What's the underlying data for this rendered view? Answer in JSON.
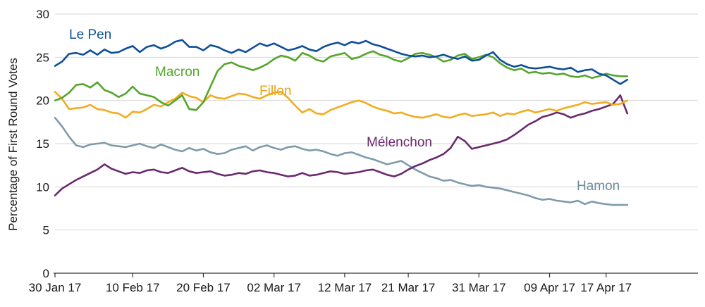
{
  "chart_data": {
    "type": "line",
    "title": "",
    "xlabel": "",
    "ylabel": "Percentage of First Round Votes",
    "ylim": [
      0,
      30
    ],
    "yticks": [
      0,
      5,
      10,
      15,
      20,
      25,
      30
    ],
    "x_start": "30 Jan 17",
    "x_end_days": 91,
    "xtick_labels": [
      "30 Jan 17",
      "10 Feb 17",
      "20 Feb 17",
      "02 Mar 17",
      "12 Mar 17",
      "21 Mar 17",
      "31 Mar 17",
      "09 Apr 17",
      "17 Apr 17"
    ],
    "xtick_days": [
      0,
      11,
      21,
      31,
      41,
      50,
      60,
      70,
      78
    ],
    "grid": true,
    "series": [
      {
        "name": "Le Pen",
        "color": "#0e4f99",
        "x": [
          0,
          1,
          2,
          3,
          4,
          5,
          6,
          7,
          8,
          9,
          10,
          11,
          12,
          13,
          14,
          15,
          16,
          17,
          18,
          19,
          20,
          21,
          22,
          23,
          24,
          25,
          26,
          27,
          28,
          29,
          30,
          31,
          32,
          33,
          34,
          35,
          36,
          37,
          38,
          39,
          40,
          41,
          42,
          43,
          44,
          45,
          46,
          47,
          48,
          49,
          50,
          51,
          52,
          53,
          54,
          55,
          56,
          57,
          58,
          59,
          60,
          61,
          62,
          63,
          64,
          65,
          66,
          67,
          68,
          69,
          70,
          71,
          72,
          73,
          74,
          75,
          76,
          77,
          78,
          79,
          80,
          81
        ],
        "y": [
          24.0,
          24.5,
          25.4,
          25.5,
          25.3,
          25.8,
          25.3,
          25.9,
          25.5,
          25.6,
          26.0,
          26.3,
          25.6,
          26.2,
          26.4,
          26.0,
          26.3,
          26.8,
          27.0,
          26.2,
          26.2,
          25.8,
          26.4,
          26.2,
          25.8,
          25.5,
          25.9,
          25.6,
          26.1,
          26.6,
          26.3,
          26.6,
          26.2,
          25.8,
          26.0,
          26.3,
          25.9,
          25.7,
          26.2,
          26.5,
          26.7,
          26.4,
          26.8,
          26.6,
          26.9,
          26.5,
          26.3,
          26.0,
          25.7,
          25.4,
          25.2,
          25.1,
          25.2,
          25.0,
          25.1,
          25.3,
          25.0,
          24.8,
          25.1,
          24.6,
          24.7,
          25.2,
          25.6,
          24.7,
          24.2,
          23.9,
          24.1,
          23.8,
          23.7,
          23.8,
          23.9,
          23.7,
          23.6,
          23.8,
          23.3,
          23.5,
          23.6,
          23.1,
          22.9,
          22.4,
          21.9,
          22.4
        ]
      },
      {
        "name": "Macron",
        "color": "#55a52d",
        "x": [
          0,
          1,
          2,
          3,
          4,
          5,
          6,
          7,
          8,
          9,
          10,
          11,
          12,
          13,
          14,
          15,
          16,
          17,
          18,
          19,
          20,
          21,
          22,
          23,
          24,
          25,
          26,
          27,
          28,
          29,
          30,
          31,
          32,
          33,
          34,
          35,
          36,
          37,
          38,
          39,
          40,
          41,
          42,
          43,
          44,
          45,
          46,
          47,
          48,
          49,
          50,
          51,
          52,
          53,
          54,
          55,
          56,
          57,
          58,
          59,
          60,
          61,
          62,
          63,
          64,
          65,
          66,
          67,
          68,
          69,
          70,
          71,
          72,
          73,
          74,
          75,
          76,
          77,
          78,
          79,
          80,
          81
        ],
        "y": [
          20.0,
          20.3,
          20.9,
          21.8,
          21.9,
          21.5,
          22.1,
          21.2,
          20.9,
          20.4,
          20.8,
          21.6,
          20.8,
          20.6,
          20.4,
          19.8,
          19.4,
          20.0,
          20.6,
          19.0,
          18.9,
          19.8,
          21.6,
          23.4,
          24.2,
          24.4,
          24.0,
          23.8,
          23.5,
          23.8,
          24.2,
          24.8,
          25.2,
          25.0,
          24.6,
          25.5,
          25.2,
          24.7,
          24.5,
          25.1,
          25.3,
          25.5,
          24.8,
          25.0,
          25.4,
          25.7,
          25.3,
          25.1,
          24.7,
          24.5,
          24.9,
          25.4,
          25.5,
          25.3,
          25.0,
          24.5,
          24.7,
          25.2,
          25.4,
          24.8,
          25.0,
          25.3,
          25.0,
          24.3,
          23.8,
          23.5,
          23.7,
          23.2,
          23.3,
          23.1,
          23.2,
          23.0,
          23.1,
          22.8,
          22.7,
          22.9,
          22.6,
          22.8,
          23.1,
          22.9,
          22.8,
          22.8
        ]
      },
      {
        "name": "Fillon",
        "color": "#f2ac1f",
        "x": [
          0,
          1,
          2,
          3,
          4,
          5,
          6,
          7,
          8,
          9,
          10,
          11,
          12,
          13,
          14,
          15,
          16,
          17,
          18,
          19,
          20,
          21,
          22,
          23,
          24,
          25,
          26,
          27,
          28,
          29,
          30,
          31,
          32,
          33,
          34,
          35,
          36,
          37,
          38,
          39,
          40,
          41,
          42,
          43,
          44,
          45,
          46,
          47,
          48,
          49,
          50,
          51,
          52,
          53,
          54,
          55,
          56,
          57,
          58,
          59,
          60,
          61,
          62,
          63,
          64,
          65,
          66,
          67,
          68,
          69,
          70,
          71,
          72,
          73,
          74,
          75,
          76,
          77,
          78,
          79,
          80,
          81
        ],
        "y": [
          21.0,
          20.2,
          19.0,
          19.1,
          19.2,
          19.5,
          19.0,
          18.9,
          18.6,
          18.5,
          18.0,
          18.7,
          18.6,
          19.0,
          19.5,
          19.3,
          19.8,
          20.2,
          20.9,
          20.5,
          20.3,
          19.8,
          20.6,
          20.3,
          20.2,
          20.5,
          20.8,
          20.7,
          20.4,
          20.2,
          20.6,
          20.9,
          21.0,
          20.3,
          19.4,
          18.6,
          19.0,
          18.5,
          18.4,
          18.9,
          19.2,
          19.5,
          19.8,
          20.0,
          19.7,
          19.3,
          19.0,
          18.8,
          18.5,
          18.6,
          18.3,
          18.1,
          18.0,
          18.2,
          18.4,
          18.1,
          18.0,
          18.3,
          18.5,
          18.2,
          18.3,
          18.4,
          18.6,
          18.2,
          18.5,
          18.4,
          18.7,
          18.9,
          18.6,
          18.8,
          19.0,
          18.8,
          19.1,
          19.3,
          19.5,
          19.8,
          19.6,
          19.7,
          19.8,
          19.5,
          19.6,
          20.0
        ]
      },
      {
        "name": "Mélenchon",
        "color": "#6a2a6e",
        "x": [
          0,
          1,
          2,
          3,
          4,
          5,
          6,
          7,
          8,
          9,
          10,
          11,
          12,
          13,
          14,
          15,
          16,
          17,
          18,
          19,
          20,
          21,
          22,
          23,
          24,
          25,
          26,
          27,
          28,
          29,
          30,
          31,
          32,
          33,
          34,
          35,
          36,
          37,
          38,
          39,
          40,
          41,
          42,
          43,
          44,
          45,
          46,
          47,
          48,
          49,
          50,
          51,
          52,
          53,
          54,
          55,
          56,
          57,
          58,
          59,
          60,
          61,
          62,
          63,
          64,
          65,
          66,
          67,
          68,
          69,
          70,
          71,
          72,
          73,
          74,
          75,
          76,
          77,
          78,
          79,
          80,
          81
        ],
        "y": [
          9.0,
          9.8,
          10.3,
          10.8,
          11.2,
          11.6,
          12.0,
          12.6,
          12.1,
          11.8,
          11.5,
          11.7,
          11.6,
          11.9,
          12.0,
          11.7,
          11.6,
          11.9,
          12.2,
          11.8,
          11.6,
          11.7,
          11.8,
          11.5,
          11.3,
          11.4,
          11.6,
          11.5,
          11.8,
          11.9,
          11.7,
          11.6,
          11.4,
          11.2,
          11.3,
          11.6,
          11.3,
          11.4,
          11.6,
          11.8,
          11.7,
          11.5,
          11.6,
          11.7,
          11.9,
          12.0,
          11.7,
          11.4,
          11.2,
          11.5,
          12.0,
          12.4,
          12.7,
          13.1,
          13.4,
          13.8,
          14.5,
          15.8,
          15.3,
          14.4,
          14.6,
          14.8,
          15.0,
          15.2,
          15.5,
          16.0,
          16.6,
          17.2,
          17.6,
          18.1,
          18.3,
          18.6,
          18.4,
          18.0,
          18.3,
          18.5,
          18.8,
          19.0,
          19.3,
          19.6,
          20.6,
          18.5
        ]
      },
      {
        "name": "Hamon",
        "color": "#7f9bab",
        "x": [
          0,
          1,
          2,
          3,
          4,
          5,
          6,
          7,
          8,
          9,
          10,
          11,
          12,
          13,
          14,
          15,
          16,
          17,
          18,
          19,
          20,
          21,
          22,
          23,
          24,
          25,
          26,
          27,
          28,
          29,
          30,
          31,
          32,
          33,
          34,
          35,
          36,
          37,
          38,
          39,
          40,
          41,
          42,
          43,
          44,
          45,
          46,
          47,
          48,
          49,
          50,
          51,
          52,
          53,
          54,
          55,
          56,
          57,
          58,
          59,
          60,
          61,
          62,
          63,
          64,
          65,
          66,
          67,
          68,
          69,
          70,
          71,
          72,
          73,
          74,
          75,
          76,
          77,
          78,
          79,
          80,
          81
        ],
        "y": [
          18.0,
          17.0,
          15.8,
          14.8,
          14.6,
          14.9,
          15.0,
          15.1,
          14.8,
          14.7,
          14.6,
          14.8,
          15.0,
          14.7,
          14.5,
          14.9,
          14.6,
          14.3,
          14.1,
          14.5,
          14.2,
          14.4,
          14.0,
          13.8,
          13.9,
          14.3,
          14.5,
          14.7,
          14.2,
          14.6,
          14.8,
          14.5,
          14.3,
          14.6,
          14.7,
          14.4,
          14.2,
          14.3,
          14.1,
          13.8,
          13.6,
          13.9,
          14.0,
          13.7,
          13.4,
          13.2,
          12.9,
          12.6,
          12.8,
          13.0,
          12.5,
          12.0,
          11.6,
          11.2,
          11.0,
          10.7,
          10.8,
          10.5,
          10.3,
          10.1,
          10.2,
          10.0,
          9.9,
          9.8,
          9.6,
          9.4,
          9.2,
          9.0,
          8.7,
          8.5,
          8.6,
          8.4,
          8.3,
          8.2,
          8.4,
          8.0,
          8.3,
          8.1,
          8.0,
          7.9,
          7.9,
          7.9
        ]
      }
    ],
    "labels": {
      "le_pen": "Le Pen",
      "macron": "Macron",
      "fillon": "Fillon",
      "melenchon": "Mélenchon",
      "hamon": "Hamon"
    }
  }
}
